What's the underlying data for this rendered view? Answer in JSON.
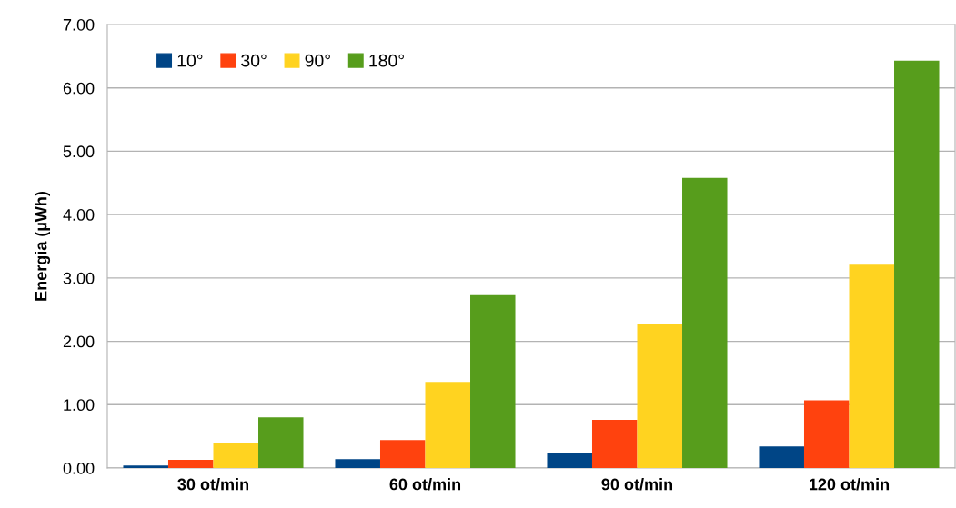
{
  "chart_data": {
    "type": "bar",
    "ylabel": "Energia (µWh)",
    "categories": [
      "30 ot/min",
      "60 ot/min",
      "90 ot/min",
      "120 ot/min"
    ],
    "series": [
      {
        "name": "10°",
        "color": "#004586",
        "values": [
          0.04,
          0.14,
          0.24,
          0.34
        ]
      },
      {
        "name": "30°",
        "color": "#ff420e",
        "values": [
          0.13,
          0.44,
          0.76,
          1.07
        ]
      },
      {
        "name": "90°",
        "color": "#ffd320",
        "values": [
          0.4,
          1.36,
          2.28,
          3.21
        ]
      },
      {
        "name": "180°",
        "color": "#579d1c",
        "values": [
          0.8,
          2.73,
          4.58,
          6.43
        ]
      }
    ],
    "ylim": [
      0,
      7
    ],
    "yticks": [
      {
        "value": 0,
        "label": "0.00"
      },
      {
        "value": 1,
        "label": "1.00"
      },
      {
        "value": 2,
        "label": "2.00"
      },
      {
        "value": 3,
        "label": "3.00"
      },
      {
        "value": 4,
        "label": "4.00"
      },
      {
        "value": 5,
        "label": "5.00"
      },
      {
        "value": 6,
        "label": "6.00"
      },
      {
        "value": 7,
        "label": "7.00"
      }
    ],
    "grid": "y",
    "legend": "top left"
  }
}
